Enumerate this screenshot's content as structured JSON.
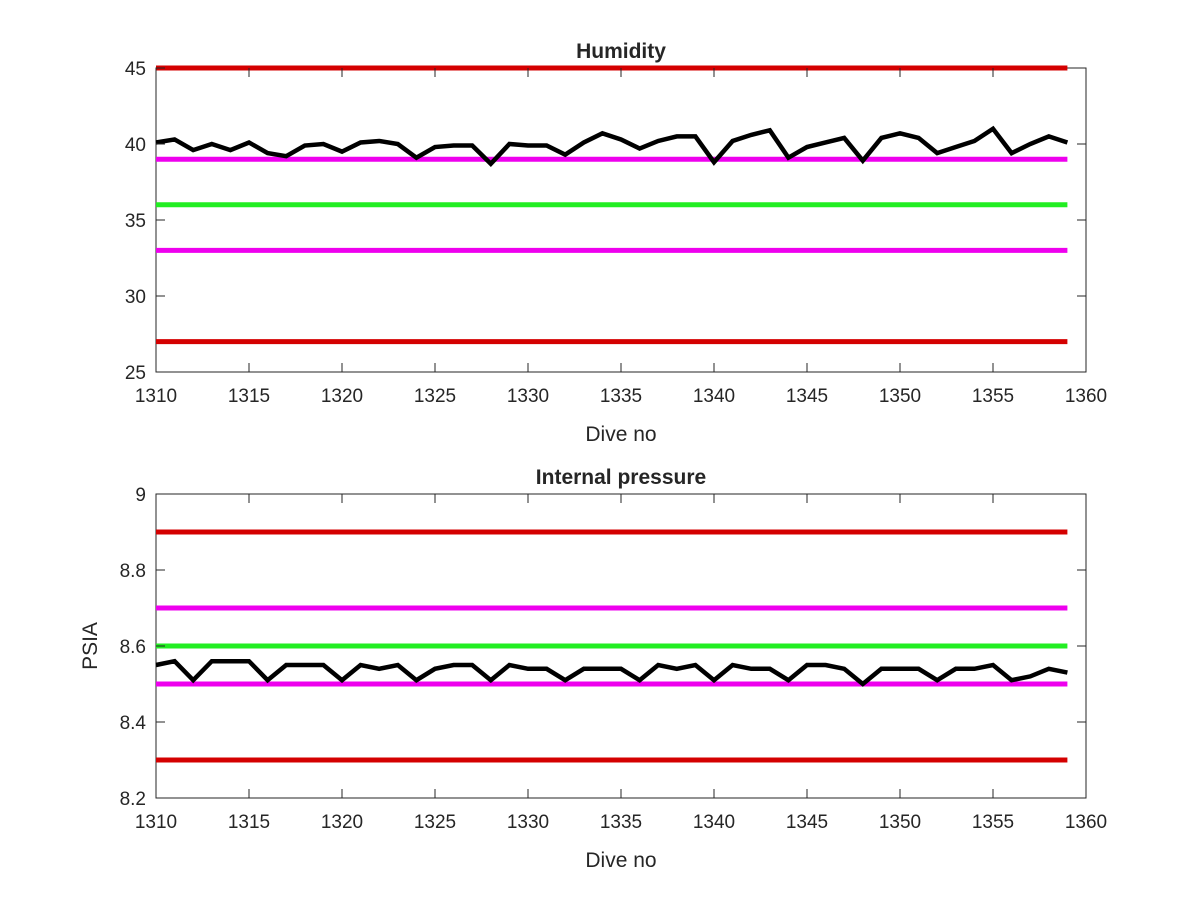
{
  "chart_data": [
    {
      "type": "line",
      "title": "Humidity",
      "xlabel": "Dive no",
      "ylabel": "",
      "xlim": [
        1310,
        1360
      ],
      "ylim": [
        25,
        45
      ],
      "xticks": [
        1310,
        1315,
        1320,
        1325,
        1330,
        1335,
        1340,
        1345,
        1350,
        1355,
        1360
      ],
      "yticks": [
        25,
        30,
        35,
        40,
        45
      ],
      "xtick_labels": [
        "1310",
        "1315",
        "1320",
        "1325",
        "1330",
        "1335",
        "1340",
        "1345",
        "1350",
        "1355",
        "1360"
      ],
      "ytick_labels": [
        "25",
        "30",
        "35",
        "40",
        "45"
      ],
      "grid": false,
      "reference_lines": [
        {
          "y": 45,
          "color": "#d40000",
          "x": [
            1310,
            1359
          ]
        },
        {
          "y": 39,
          "color": "#ee00ee",
          "x": [
            1310,
            1359
          ]
        },
        {
          "y": 36,
          "color": "#22ee22",
          "x": [
            1310,
            1359
          ]
        },
        {
          "y": 33,
          "color": "#ee00ee",
          "x": [
            1310,
            1359
          ]
        },
        {
          "y": 27,
          "color": "#d40000",
          "x": [
            1310,
            1359
          ]
        }
      ],
      "series": [
        {
          "color": "#000000",
          "x": [
            1310,
            1311,
            1312,
            1313,
            1314,
            1315,
            1316,
            1317,
            1318,
            1319,
            1320,
            1321,
            1322,
            1323,
            1324,
            1325,
            1326,
            1327,
            1328,
            1329,
            1330,
            1331,
            1332,
            1333,
            1334,
            1335,
            1336,
            1337,
            1338,
            1339,
            1340,
            1341,
            1342,
            1343,
            1344,
            1345,
            1346,
            1347,
            1348,
            1349,
            1350,
            1351,
            1352,
            1353,
            1354,
            1355,
            1356,
            1357,
            1358,
            1359
          ],
          "y": [
            40.1,
            40.3,
            39.6,
            40.0,
            39.6,
            40.1,
            39.4,
            39.2,
            39.9,
            40.0,
            39.5,
            40.1,
            40.2,
            40.0,
            39.1,
            39.8,
            39.9,
            39.9,
            38.7,
            40.0,
            39.9,
            39.9,
            39.3,
            40.1,
            40.7,
            40.3,
            39.7,
            40.2,
            40.5,
            40.5,
            38.8,
            40.2,
            40.6,
            40.9,
            39.1,
            39.8,
            40.1,
            40.4,
            38.9,
            40.4,
            40.7,
            40.4,
            39.4,
            39.8,
            40.2,
            41.0,
            39.4,
            40.0,
            40.5,
            40.1
          ]
        }
      ]
    },
    {
      "type": "line",
      "title": "Internal pressure",
      "xlabel": "Dive no",
      "ylabel": "PSIA",
      "xlim": [
        1310,
        1360
      ],
      "ylim": [
        8.2,
        9.0
      ],
      "xticks": [
        1310,
        1315,
        1320,
        1325,
        1330,
        1335,
        1340,
        1345,
        1350,
        1355,
        1360
      ],
      "yticks": [
        8.2,
        8.4,
        8.6,
        8.8,
        9.0
      ],
      "xtick_labels": [
        "1310",
        "1315",
        "1320",
        "1325",
        "1330",
        "1335",
        "1340",
        "1345",
        "1350",
        "1355",
        "1360"
      ],
      "ytick_labels": [
        "8.2",
        "8.4",
        "8.6",
        "8.8",
        "9"
      ],
      "grid": false,
      "reference_lines": [
        {
          "y": 8.9,
          "color": "#d40000",
          "x": [
            1310,
            1359
          ]
        },
        {
          "y": 8.7,
          "color": "#ee00ee",
          "x": [
            1310,
            1359
          ]
        },
        {
          "y": 8.6,
          "color": "#22ee22",
          "x": [
            1310,
            1359
          ]
        },
        {
          "y": 8.5,
          "color": "#ee00ee",
          "x": [
            1310,
            1359
          ]
        },
        {
          "y": 8.3,
          "color": "#d40000",
          "x": [
            1310,
            1359
          ]
        }
      ],
      "series": [
        {
          "color": "#000000",
          "x": [
            1310,
            1311,
            1312,
            1313,
            1314,
            1315,
            1316,
            1317,
            1318,
            1319,
            1320,
            1321,
            1322,
            1323,
            1324,
            1325,
            1326,
            1327,
            1328,
            1329,
            1330,
            1331,
            1332,
            1333,
            1334,
            1335,
            1336,
            1337,
            1338,
            1339,
            1340,
            1341,
            1342,
            1343,
            1344,
            1345,
            1346,
            1347,
            1348,
            1349,
            1350,
            1351,
            1352,
            1353,
            1354,
            1355,
            1356,
            1357,
            1358,
            1359
          ],
          "y": [
            8.55,
            8.56,
            8.51,
            8.56,
            8.56,
            8.56,
            8.51,
            8.55,
            8.55,
            8.55,
            8.51,
            8.55,
            8.54,
            8.55,
            8.51,
            8.54,
            8.55,
            8.55,
            8.51,
            8.55,
            8.54,
            8.54,
            8.51,
            8.54,
            8.54,
            8.54,
            8.51,
            8.55,
            8.54,
            8.55,
            8.51,
            8.55,
            8.54,
            8.54,
            8.51,
            8.55,
            8.55,
            8.54,
            8.5,
            8.54,
            8.54,
            8.54,
            8.51,
            8.54,
            8.54,
            8.55,
            8.51,
            8.52,
            8.54,
            8.53
          ]
        }
      ]
    }
  ]
}
